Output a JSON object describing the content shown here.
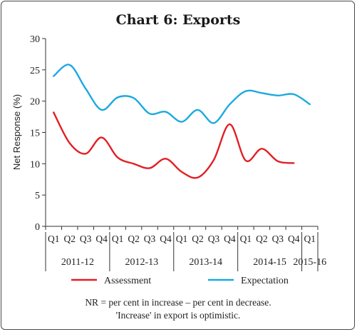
{
  "chart_data": {
    "type": "line",
    "title": "Chart 6: Exports",
    "ylabel": "Net Response (%)",
    "ylim": [
      0,
      30
    ],
    "yticks": [
      0,
      5,
      10,
      15,
      20,
      25,
      30
    ],
    "quarters": [
      "Q1",
      "Q2",
      "Q3",
      "Q4",
      "Q1",
      "Q2",
      "Q3",
      "Q4",
      "Q1",
      "Q2",
      "Q3",
      "Q4",
      "Q1",
      "Q2",
      "Q3",
      "Q4",
      "Q1"
    ],
    "years": [
      {
        "label": "2011-12",
        "start": 0,
        "end": 3
      },
      {
        "label": "2012-13",
        "start": 4,
        "end": 7
      },
      {
        "label": "2013-14",
        "start": 8,
        "end": 11
      },
      {
        "label": "2014-15",
        "start": 12,
        "end": 15
      },
      {
        "label": "2015-16",
        "start": 16,
        "end": 16
      }
    ],
    "series": [
      {
        "name": "Assessment",
        "color": "#e31e24",
        "values": [
          18.2,
          13.3,
          11.6,
          14.2,
          11.0,
          10.0,
          9.3,
          10.8,
          8.7,
          7.8,
          10.6,
          16.3,
          10.5,
          12.4,
          10.4,
          10.1,
          null
        ]
      },
      {
        "name": "Expectation",
        "color": "#1ba9e1",
        "values": [
          24.0,
          25.8,
          22.0,
          18.6,
          20.6,
          20.5,
          18.0,
          18.3,
          16.7,
          18.6,
          16.5,
          19.5,
          21.6,
          21.3,
          20.9,
          21.1,
          19.5
        ]
      }
    ],
    "legend_position": "bottom",
    "notes": [
      "NR = per cent in increase – per cent in decrease.",
      "'Increase' in export is optimistic."
    ]
  }
}
